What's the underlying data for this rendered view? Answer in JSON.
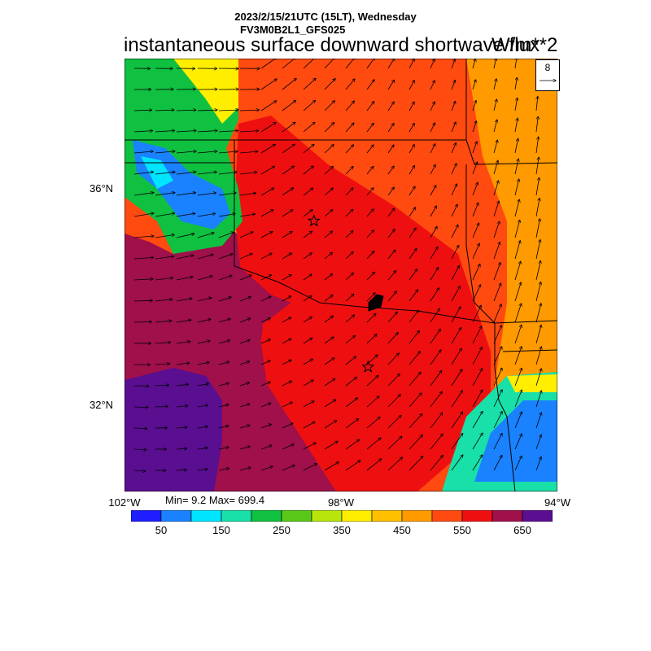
{
  "header": {
    "datetime": "2023/2/15/21UTC (15LT), Wednesday",
    "model": "FV3M0B2L1_GFS025",
    "title": "instantaneous surface downward shortwave flux",
    "units": "W/m**2"
  },
  "axes": {
    "lat_labels": [
      {
        "text": "36°N",
        "lat": 36
      },
      {
        "text": "32°N",
        "lat": 32
      }
    ],
    "lon_labels": [
      {
        "text": "102°W",
        "lon": -102
      },
      {
        "text": "98°W",
        "lon": -98
      },
      {
        "text": "94°W",
        "lon": -94
      }
    ],
    "lon_range": [
      -102,
      -94
    ],
    "lat_range": [
      30.4,
      38.4
    ]
  },
  "stats": {
    "text": "Min= 9.2 Max= 699.4",
    "min": 9.2,
    "max": 699.4
  },
  "colorbar": {
    "colors": [
      "#1e1eff",
      "#1a82ff",
      "#00e5ff",
      "#18e0a8",
      "#10c040",
      "#5ac818",
      "#b8e60c",
      "#ffee00",
      "#ffc000",
      "#ff9a00",
      "#ff4a10",
      "#ee1010",
      "#a0104a",
      "#5a0e90"
    ],
    "tick_labels": [
      "50",
      "150",
      "250",
      "350",
      "450",
      "550",
      "650"
    ],
    "tick_values": [
      50,
      150,
      250,
      350,
      450,
      550,
      650
    ]
  },
  "wind_reference": {
    "label": "8",
    "value": 8
  },
  "markers": [
    {
      "name": "star",
      "lon": -98.5,
      "lat": 35.4
    },
    {
      "name": "star",
      "lon": -97.5,
      "lat": 32.7
    }
  ]
}
